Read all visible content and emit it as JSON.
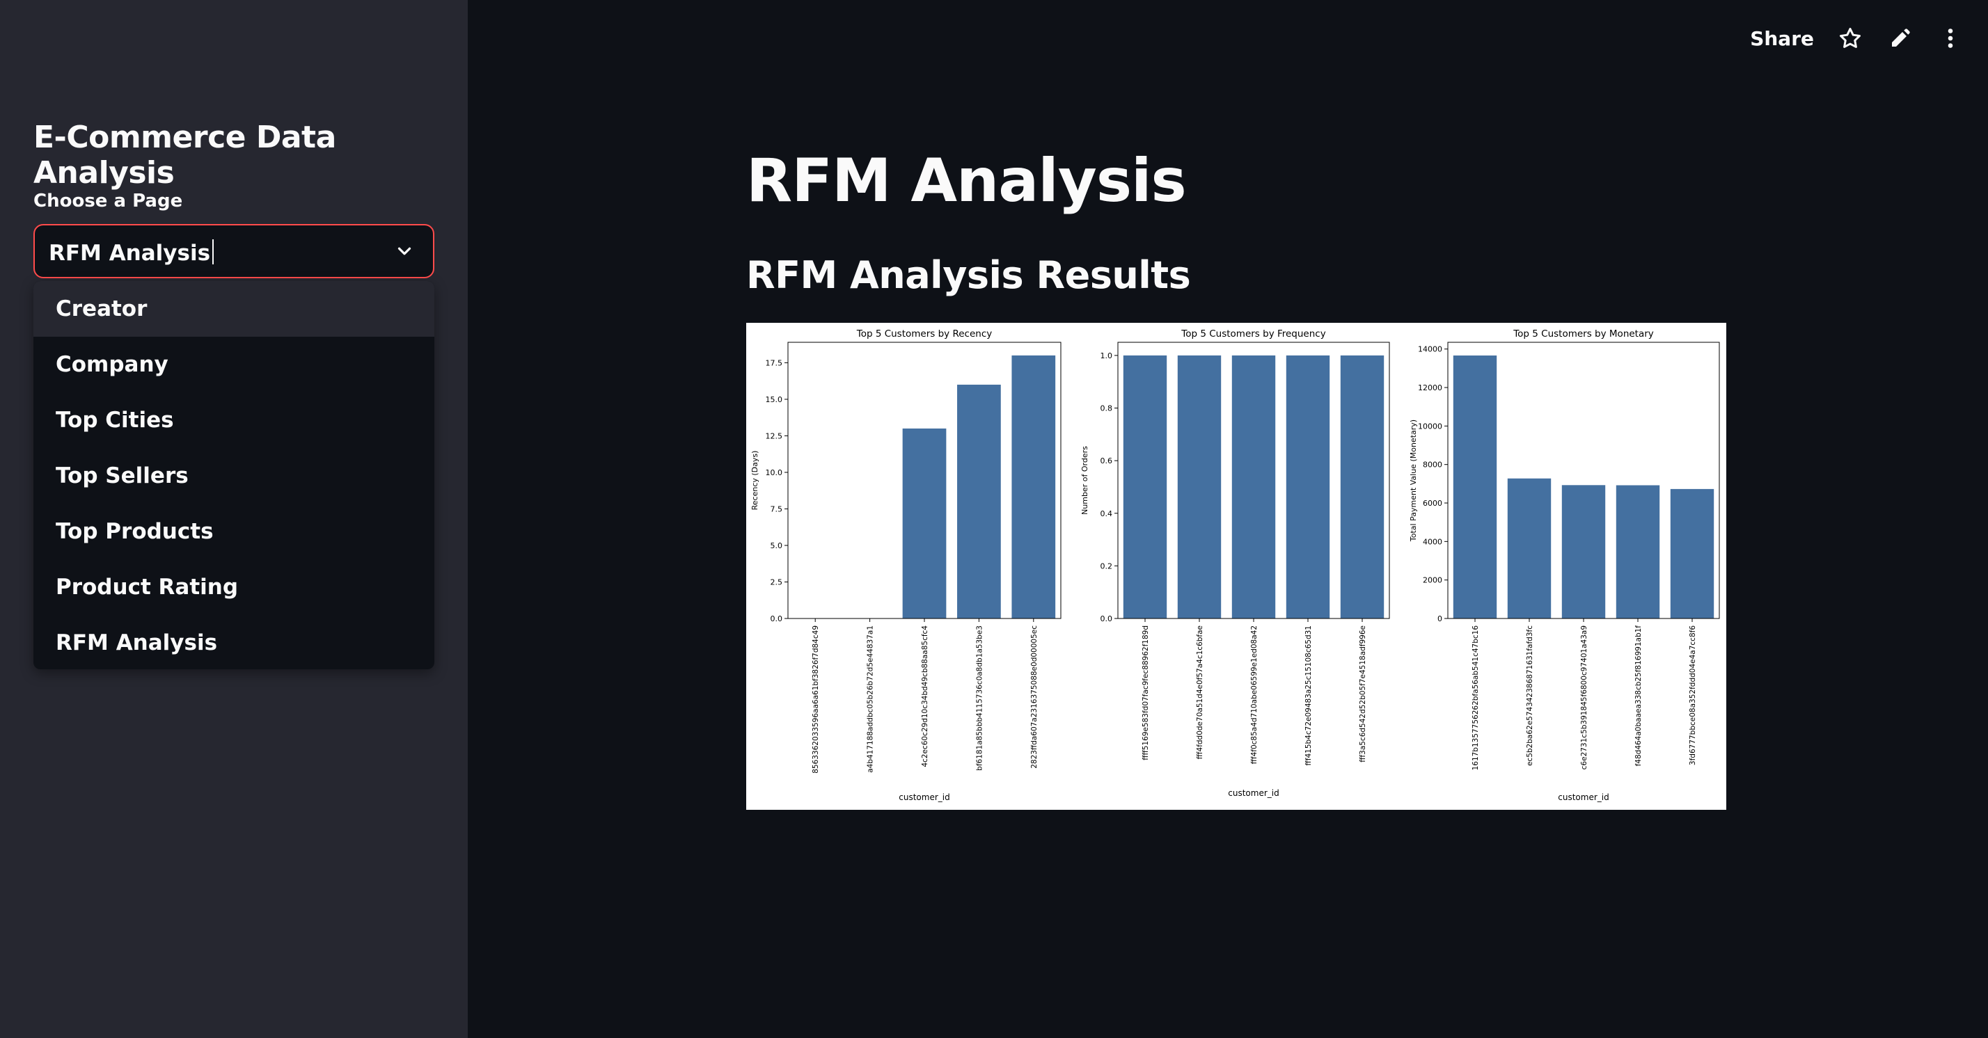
{
  "sidebar": {
    "title": "E-Commerce Data Analysis",
    "select_label": "Choose a Page",
    "select_value": "RFM Analysis",
    "options": [
      "Creator",
      "Company",
      "Top Cities",
      "Top Sellers",
      "Top Products",
      "Product Rating",
      "RFM Analysis"
    ],
    "highlighted_option": "Creator"
  },
  "toolbar": {
    "share_label": "Share",
    "icons": [
      "star-icon",
      "edit-icon",
      "more-vertical-icon"
    ]
  },
  "main": {
    "title": "RFM Analysis",
    "subtitle": "RFM Analysis Results"
  },
  "colors": {
    "bar": "#4470a0",
    "accent": "#ff4b4b"
  },
  "chart_data": [
    {
      "type": "bar",
      "title": "Top 5 Customers by Recency",
      "xlabel": "customer_id",
      "ylabel": "Recency (Days)",
      "categories": [
        "8563362033596aa6a61bf3826f7d84c49",
        "a4b417188addbc05b26b72d5e44837a1",
        "4c2ec60c29d10c34bd49cb88aa85cfc4",
        "bf6181a85bbb4115736c0a8db1a53be3",
        "2823ffda607a2316375088e0d00005ec"
      ],
      "values": [
        0,
        0,
        13,
        16,
        18
      ],
      "yticks": [
        "0.0",
        "2.5",
        "5.0",
        "7.5",
        "10.0",
        "12.5",
        "15.0",
        "17.5"
      ],
      "ylim": [
        0,
        18.9
      ]
    },
    {
      "type": "bar",
      "title": "Top 5 Customers by Frequency",
      "xlabel": "customer_id",
      "ylabel": "Number of Orders",
      "categories": [
        "ffff5169e583fd07fac9fec88962f189d",
        "fff4fdd0de70a51d4e0f57a4c1c6bfae",
        "fff4f0c85a4d710abe06599e1ed08a42",
        "fff415b4c72e09483a25c15108c65d31",
        "fff3a5c6d542d52b05f7e4518adf996e"
      ],
      "values": [
        1,
        1,
        1,
        1,
        1
      ],
      "yticks": [
        "0.0",
        "0.2",
        "0.4",
        "0.6",
        "0.8",
        "1.0"
      ],
      "ylim": [
        0,
        1.05
      ]
    },
    {
      "type": "bar",
      "title": "Top 5 Customers by Monetary",
      "xlabel": "customer_id",
      "ylabel": "Total Payment Value (Monetary)",
      "categories": [
        "1617b1357756262bfa56ab541c47bc16",
        "ec5b2ba62e574342386871631fafd3fc",
        "c6e2731c5b391845f6800c97401a43a9",
        "f48d464a0baaea338cb25f816991ab1f",
        "3fd6777bbce08a352fddd04e4a7cc8f6"
      ],
      "values": [
        13664,
        7275,
        6929,
        6922,
        6727
      ],
      "yticks": [
        "0",
        "2000",
        "4000",
        "6000",
        "8000",
        "10000",
        "12000",
        "14000"
      ],
      "ylim": [
        0,
        14350
      ]
    }
  ]
}
